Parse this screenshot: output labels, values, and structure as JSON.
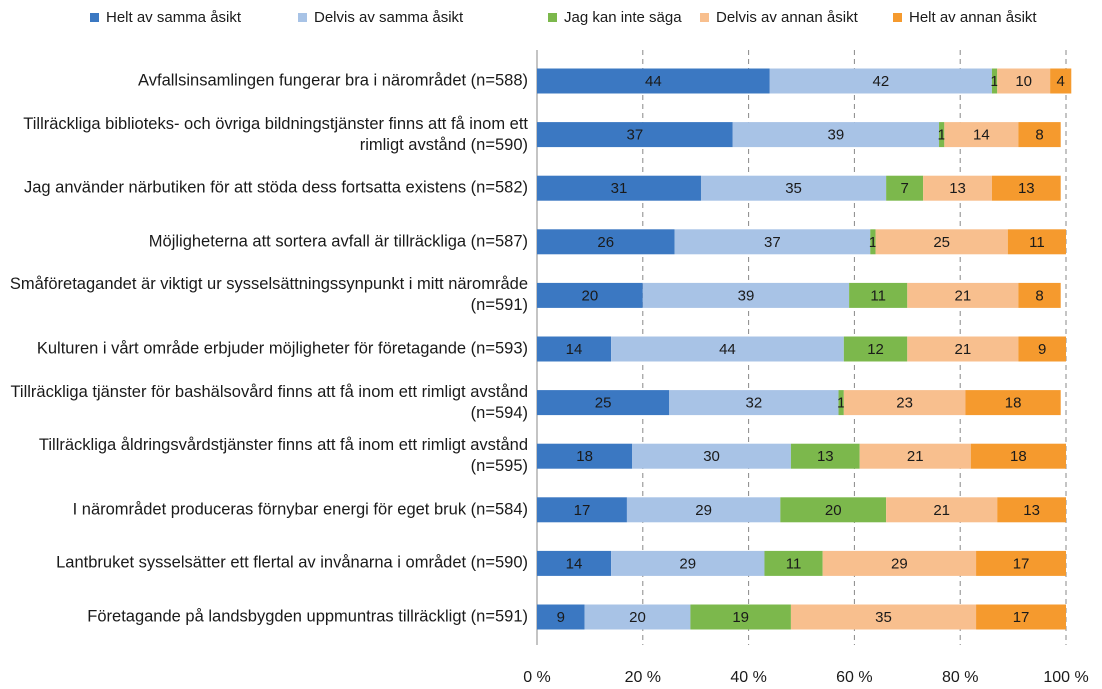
{
  "chart_data": {
    "type": "stacked-barh",
    "categories": [
      "Avfallsinsamlingen fungerar bra i närområdet (n=588)",
      "Tillräckliga biblioteks- och övriga bildningstjänster finns att få inom ett rimligt avstånd (n=590)",
      "Jag använder närbutiken för att stöda dess fortsatta existens (n=582)",
      "Möjligheterna att sortera avfall är tillräckliga (n=587)",
      "Småföretagandet är viktigt ur sysselsättningssynpunkt i mitt närområde (n=591)",
      "Kulturen i vårt område erbjuder möjligheter för företagande (n=593)",
      "Tillräckliga tjänster för bashälsovård finns att få inom ett rimligt avstånd (n=594)",
      "Tillräckliga åldringsvårdstjänster finns att få inom ett rimligt avstånd (n=595)",
      "I närområdet produceras förnybar energi för eget bruk (n=584)",
      "Lantbruket sysselsätter ett flertal av invånarna i området (n=590)",
      "Företagande på landsbygden uppmuntras tillräckligt (n=591)"
    ],
    "series": [
      {
        "name": "Helt av samma åsikt",
        "color": "#3b78c2",
        "values": [
          44,
          37,
          31,
          26,
          20,
          14,
          25,
          18,
          17,
          14,
          9
        ]
      },
      {
        "name": "Delvis av samma åsikt",
        "color": "#a8c3e6",
        "values": [
          42,
          39,
          35,
          37,
          39,
          44,
          32,
          30,
          29,
          29,
          20
        ]
      },
      {
        "name": "Jag kan inte säga",
        "color": "#7cb84c",
        "values": [
          1,
          1,
          7,
          1,
          11,
          12,
          1,
          13,
          20,
          11,
          19
        ]
      },
      {
        "name": "Delvis av annan åsikt",
        "color": "#f8bf8e",
        "values": [
          10,
          14,
          13,
          25,
          21,
          21,
          23,
          21,
          21,
          29,
          35
        ]
      },
      {
        "name": "Helt av annan åsikt",
        "color": "#f59a2e",
        "values": [
          4,
          8,
          13,
          11,
          8,
          9,
          18,
          18,
          13,
          17,
          17
        ]
      }
    ],
    "xlim": [
      0,
      100
    ],
    "xticks": [
      {
        "value": 0,
        "label": "0 %"
      },
      {
        "value": 20,
        "label": "20 %"
      },
      {
        "value": 40,
        "label": "40 %"
      },
      {
        "value": 60,
        "label": "60 %"
      },
      {
        "value": 80,
        "label": "80 %"
      },
      {
        "value": 100,
        "label": "100 %"
      }
    ],
    "grid": true,
    "legend": "top"
  }
}
